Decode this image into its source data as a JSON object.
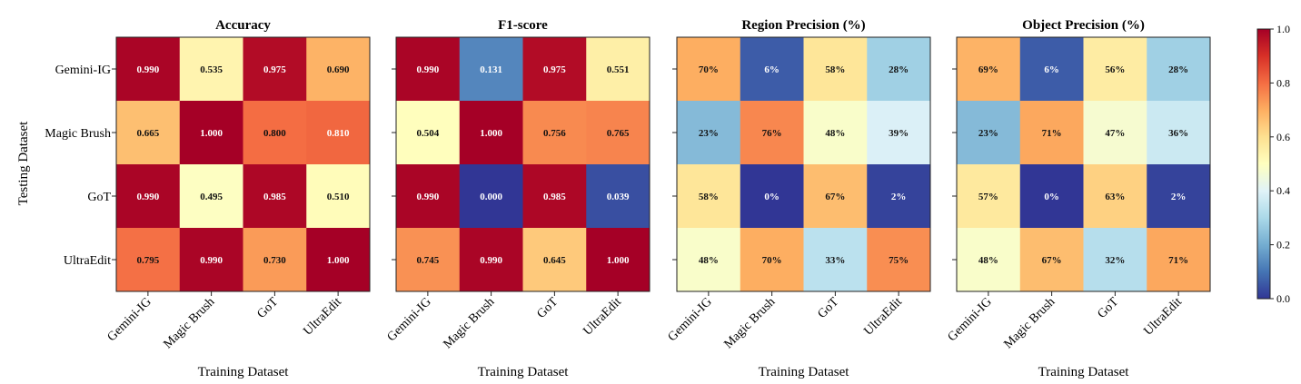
{
  "chart_data": {
    "type": "heatmap",
    "row_labels": [
      "Gemini-IG",
      "Magic Brush",
      "GoT",
      "UltraEdit"
    ],
    "col_labels": [
      "Gemini-IG",
      "Magic Brush",
      "GoT",
      "UltraEdit"
    ],
    "ylabel": "Testing Dataset",
    "colormap": "RdYlBu_r",
    "colorbar": {
      "range": [
        0.0,
        1.0
      ],
      "ticks": [
        "0.0",
        "0.2",
        "0.4",
        "0.6",
        "0.8",
        "1.0"
      ]
    },
    "panels": [
      {
        "title": "Accuracy",
        "xlabel": "Training Dataset",
        "values": [
          [
            0.99,
            0.535,
            0.975,
            0.69
          ],
          [
            0.665,
            1.0,
            0.8,
            0.81
          ],
          [
            0.99,
            0.495,
            0.985,
            0.51
          ],
          [
            0.795,
            0.99,
            0.73,
            1.0
          ]
        ],
        "labels": [
          [
            "0.990",
            "0.535",
            "0.975",
            "0.690"
          ],
          [
            "0.665",
            "1.000",
            "0.800",
            "0.810"
          ],
          [
            "0.990",
            "0.495",
            "0.985",
            "0.510"
          ],
          [
            "0.795",
            "0.990",
            "0.730",
            "1.000"
          ]
        ]
      },
      {
        "title": "F1-score",
        "xlabel": "Training Dataset",
        "values": [
          [
            0.99,
            0.131,
            0.975,
            0.551
          ],
          [
            0.504,
            1.0,
            0.756,
            0.765
          ],
          [
            0.99,
            0.0,
            0.985,
            0.039
          ],
          [
            0.745,
            0.99,
            0.645,
            1.0
          ]
        ],
        "labels": [
          [
            "0.990",
            "0.131",
            "0.975",
            "0.551"
          ],
          [
            "0.504",
            "1.000",
            "0.756",
            "0.765"
          ],
          [
            "0.990",
            "0.000",
            "0.985",
            "0.039"
          ],
          [
            "0.745",
            "0.990",
            "0.645",
            "1.000"
          ]
        ]
      },
      {
        "title": "Region Precision (%)",
        "xlabel": "Training Dataset",
        "values": [
          [
            0.7,
            0.06,
            0.58,
            0.28
          ],
          [
            0.23,
            0.76,
            0.48,
            0.39
          ],
          [
            0.58,
            0.0,
            0.67,
            0.02
          ],
          [
            0.48,
            0.7,
            0.33,
            0.75
          ]
        ],
        "labels": [
          [
            "70%",
            "6%",
            "58%",
            "28%"
          ],
          [
            "23%",
            "76%",
            "48%",
            "39%"
          ],
          [
            "58%",
            "0%",
            "67%",
            "2%"
          ],
          [
            "48%",
            "70%",
            "33%",
            "75%"
          ]
        ]
      },
      {
        "title": "Object Precision (%)",
        "xlabel": "Training Dataset",
        "values": [
          [
            0.69,
            0.06,
            0.56,
            0.28
          ],
          [
            0.23,
            0.71,
            0.47,
            0.36
          ],
          [
            0.57,
            0.0,
            0.63,
            0.02
          ],
          [
            0.48,
            0.67,
            0.32,
            0.71
          ]
        ],
        "labels": [
          [
            "69%",
            "6%",
            "56%",
            "28%"
          ],
          [
            "23%",
            "71%",
            "47%",
            "36%"
          ],
          [
            "57%",
            "0%",
            "63%",
            "2%"
          ],
          [
            "48%",
            "67%",
            "32%",
            "71%"
          ]
        ]
      }
    ]
  }
}
